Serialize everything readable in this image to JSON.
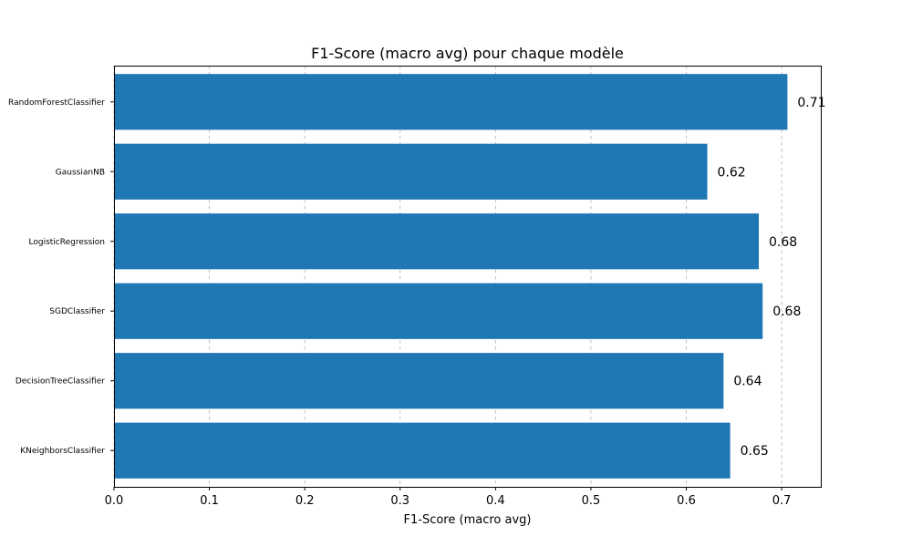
{
  "chart_data": {
    "type": "bar",
    "orientation": "horizontal",
    "title": "F1-Score (macro avg) pour chaque modèle",
    "xlabel": "F1-Score (macro avg)",
    "ylabel": "",
    "categories": [
      "RandomForestClassifier",
      "GaussianNB",
      "LogisticRegression",
      "SGDClassifier",
      "DecisionTreeClassifier",
      "KNeighborsClassifier"
    ],
    "values": [
      0.706,
      0.622,
      0.676,
      0.68,
      0.639,
      0.646
    ],
    "value_labels": [
      "0.71",
      "0.62",
      "0.68",
      "0.68",
      "0.64",
      "0.65"
    ],
    "xlim": [
      0,
      0.741
    ],
    "xticks": [
      0.0,
      0.1,
      0.2,
      0.3,
      0.4,
      0.5,
      0.6,
      0.7
    ],
    "xtick_labels": [
      "0.0",
      "0.1",
      "0.2",
      "0.3",
      "0.4",
      "0.5",
      "0.6",
      "0.7"
    ],
    "grid": "x-dashed",
    "bar_color": "#1f77b4"
  }
}
